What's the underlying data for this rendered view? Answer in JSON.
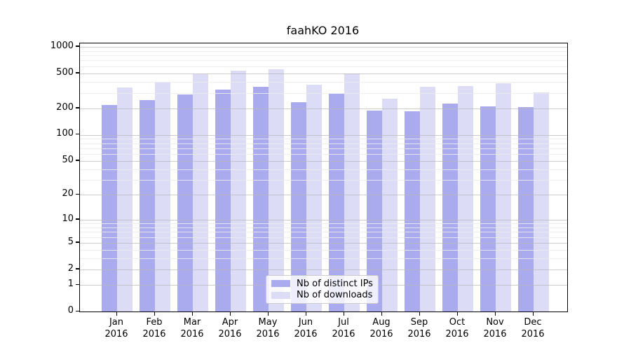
{
  "title": "faahKO 2016",
  "chart_data": {
    "type": "bar",
    "title": "faahKO 2016",
    "categories": [
      "Jan 2016",
      "Feb 2016",
      "Mar 2016",
      "Apr 2016",
      "May 2016",
      "Jun 2016",
      "Jul 2016",
      "Aug 2016",
      "Sep 2016",
      "Oct 2016",
      "Nov 2016",
      "Dec 2016"
    ],
    "series": [
      {
        "name": "Nb of distinct IPs",
        "color": "#aaaaef",
        "values": [
          220,
          250,
          290,
          325,
          350,
          235,
          295,
          190,
          185,
          227,
          212,
          207
        ]
      },
      {
        "name": "Nb of downloads",
        "color": "#dcdcf7",
        "values": [
          345,
          400,
          490,
          540,
          560,
          375,
          495,
          260,
          353,
          357,
          385,
          305
        ]
      }
    ],
    "xlabel": "",
    "ylabel": "",
    "yscale": "log10(value+1)",
    "ylim": [
      0,
      1100
    ],
    "yticks": [
      0,
      1,
      2,
      5,
      10,
      20,
      50,
      100,
      200,
      500,
      1000
    ],
    "minor_gridlines": [
      3,
      4,
      6,
      7,
      8,
      9,
      30,
      40,
      60,
      70,
      80,
      90,
      300,
      400,
      600,
      700,
      800,
      900
    ],
    "grid": "on",
    "legend_position": "lower center"
  }
}
